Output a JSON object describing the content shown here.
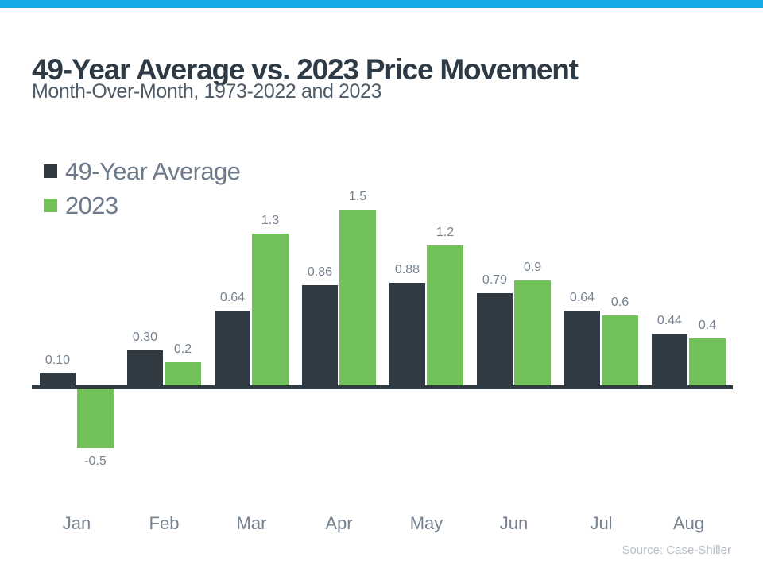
{
  "page": {
    "title": "49-Year Average vs. 2023 Price Movement",
    "subtitle": "Month-Over-Month, 1973-2022 and 2023",
    "source": "Source: Case-Shiller",
    "accent_color": "#18a9e8",
    "background_color": "#ffffff"
  },
  "chart_data": {
    "type": "bar",
    "title": "49-Year Average vs. 2023 Price Movement",
    "subtitle": "Month-Over-Month, 1973-2022 and 2023",
    "xlabel": "",
    "ylabel": "",
    "ylim": [
      -0.5,
      1.5
    ],
    "grid": false,
    "legend_position": "top-left",
    "data_labels": true,
    "categories": [
      "Jan",
      "Feb",
      "Mar",
      "Apr",
      "May",
      "Jun",
      "Jul",
      "Aug"
    ],
    "series": [
      {
        "name": "49-Year Average",
        "color": "#303a43",
        "values": [
          0.1,
          0.3,
          0.64,
          0.86,
          0.88,
          0.79,
          0.64,
          0.44
        ],
        "labels": [
          "0.10",
          "0.30",
          "0.64",
          "0.86",
          "0.88",
          "0.79",
          "0.64",
          "0.44"
        ]
      },
      {
        "name": "2023",
        "color": "#72c15a",
        "values": [
          -0.5,
          0.2,
          1.3,
          1.5,
          1.2,
          0.9,
          0.6,
          0.4
        ],
        "labels": [
          "-0.5",
          "0.2",
          "1.3",
          "1.5",
          "1.2",
          "0.9",
          "0.6",
          "0.4"
        ]
      }
    ],
    "axis_color": "#303a43",
    "label_color": "#76828f"
  }
}
